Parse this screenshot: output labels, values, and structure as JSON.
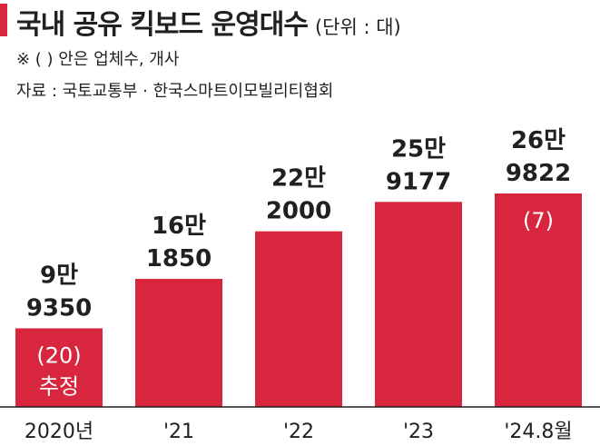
{
  "header": {
    "title": "국내 공유 킥보드 운영대수",
    "unit": "(단위 : 대)",
    "note": "※ (  ) 안은 업체수, 개사",
    "source": "자료 : 국토교통부 · 한국스마트이모빌리티협회"
  },
  "colors": {
    "bar": "#d7263d",
    "text": "#231f20"
  },
  "chart_data": {
    "type": "bar",
    "categories": [
      "2020년",
      "'21",
      "'22",
      "'23",
      "'24.8월"
    ],
    "values": [
      99350,
      161850,
      222000,
      259177,
      269822
    ],
    "value_labels": [
      [
        "9만",
        "9350"
      ],
      [
        "16만",
        "1850"
      ],
      [
        "22만",
        "2000"
      ],
      [
        "25만",
        "9177"
      ],
      [
        "26만",
        "9822"
      ]
    ],
    "inbar_labels": [
      [
        "(20)",
        "추정"
      ],
      [],
      [],
      [],
      [
        "(7)"
      ]
    ],
    "company_counts": [
      20,
      null,
      null,
      null,
      7
    ],
    "title": "국내 공유 킥보드 운영대수",
    "unit": "대",
    "grid": false,
    "legend": "none"
  }
}
